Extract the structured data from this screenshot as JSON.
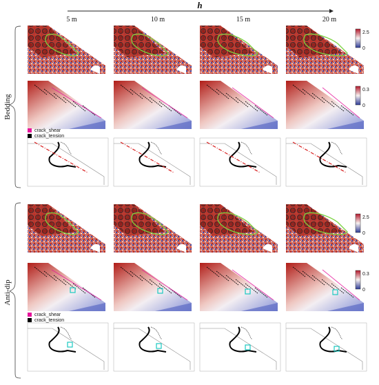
{
  "figure": {
    "h_axis_label": "h",
    "columns": [
      "5 m",
      "10 m",
      "15 m",
      "20 m"
    ],
    "groups": [
      {
        "label": "Bedding",
        "disp_scale": [
          "2.5",
          "0"
        ],
        "shear_scale": [
          "0.3",
          "0"
        ]
      },
      {
        "label": "Anti-dip",
        "disp_scale": [
          "2.5",
          "0"
        ],
        "shear_scale": [
          "0.3",
          "0"
        ]
      }
    ],
    "legend": {
      "shear": "crack_shear",
      "tension": "crack_tension"
    },
    "colors": {
      "high": "#c0392b",
      "low": "#2e3c9a",
      "mid": "#f3ecea",
      "outline": "#7ad33f",
      "shear_crack": "#e6149b",
      "tension_crack": "#000000",
      "marker": "#19c9c0",
      "failure_line": "#d81f1f"
    }
  }
}
